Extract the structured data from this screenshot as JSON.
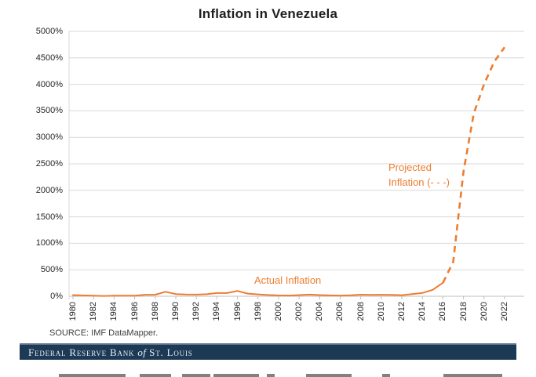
{
  "page": {
    "source_note": "SOURCE: IMF DataMapper.",
    "footer": {
      "bank_main": "Federal Reserve Bank ",
      "bank_of": "of",
      "bank_city": " St. Louis"
    },
    "colors": {
      "accent_orange": "#ED7D31",
      "banner_navy": "#1C3A56",
      "gridline_gray": "#D9D9D9",
      "axis_baseline_gray": "#BFBFBF",
      "title_text": "#1F1F1F"
    }
  },
  "chart_data": {
    "type": "line",
    "title": "Inflation in Venezuela",
    "xlabel": "",
    "ylabel": "",
    "xlim": [
      1980,
      2022
    ],
    "ylim": [
      0,
      5000
    ],
    "grid": "horizontal",
    "legend_position": "none",
    "y_tick_values": [
      0,
      500,
      1000,
      1500,
      2000,
      2500,
      3000,
      3500,
      4000,
      4500,
      5000
    ],
    "y_tick_labels": [
      "0%",
      "500%",
      "1000%",
      "1500%",
      "2000%",
      "2500%",
      "3000%",
      "3500%",
      "4000%",
      "4500%",
      "5000%"
    ],
    "x_ticks": [
      1980,
      1982,
      1984,
      1986,
      1988,
      1990,
      1992,
      1994,
      1996,
      1998,
      2000,
      2002,
      2004,
      2006,
      2008,
      2010,
      2012,
      2014,
      2016,
      2018,
      2020,
      2022
    ],
    "series": [
      {
        "name": "Actual Inflation",
        "style": "solid",
        "color": "#ED7D31",
        "x": [
          1980,
          1981,
          1982,
          1983,
          1984,
          1985,
          1986,
          1987,
          1988,
          1989,
          1990,
          1991,
          1992,
          1993,
          1994,
          1995,
          1996,
          1997,
          1998,
          1999,
          2000,
          2001,
          2002,
          2003,
          2004,
          2005,
          2006,
          2007,
          2008,
          2009,
          2010,
          2011,
          2012,
          2013,
          2014,
          2015,
          2016
        ],
        "y": [
          22,
          16,
          10,
          6,
          12,
          11,
          12,
          28,
          30,
          84,
          41,
          34,
          31,
          38,
          61,
          60,
          100,
          50,
          36,
          24,
          16,
          13,
          22,
          31,
          22,
          16,
          14,
          19,
          30,
          27,
          28,
          26,
          21,
          41,
          62,
          122,
          255
        ]
      },
      {
        "name": "Projected Inflation",
        "style": "dashed",
        "color": "#ED7D31",
        "x": [
          2016,
          2017,
          2018,
          2019,
          2020,
          2021,
          2022
        ],
        "y": [
          255,
          650,
          2350,
          3450,
          4000,
          4430,
          4700
        ]
      }
    ],
    "annotations": {
      "actual_label": "Actual Inflation",
      "projected_label_line1": "Projected",
      "projected_label_line2": "Inflation (- - -)"
    }
  }
}
